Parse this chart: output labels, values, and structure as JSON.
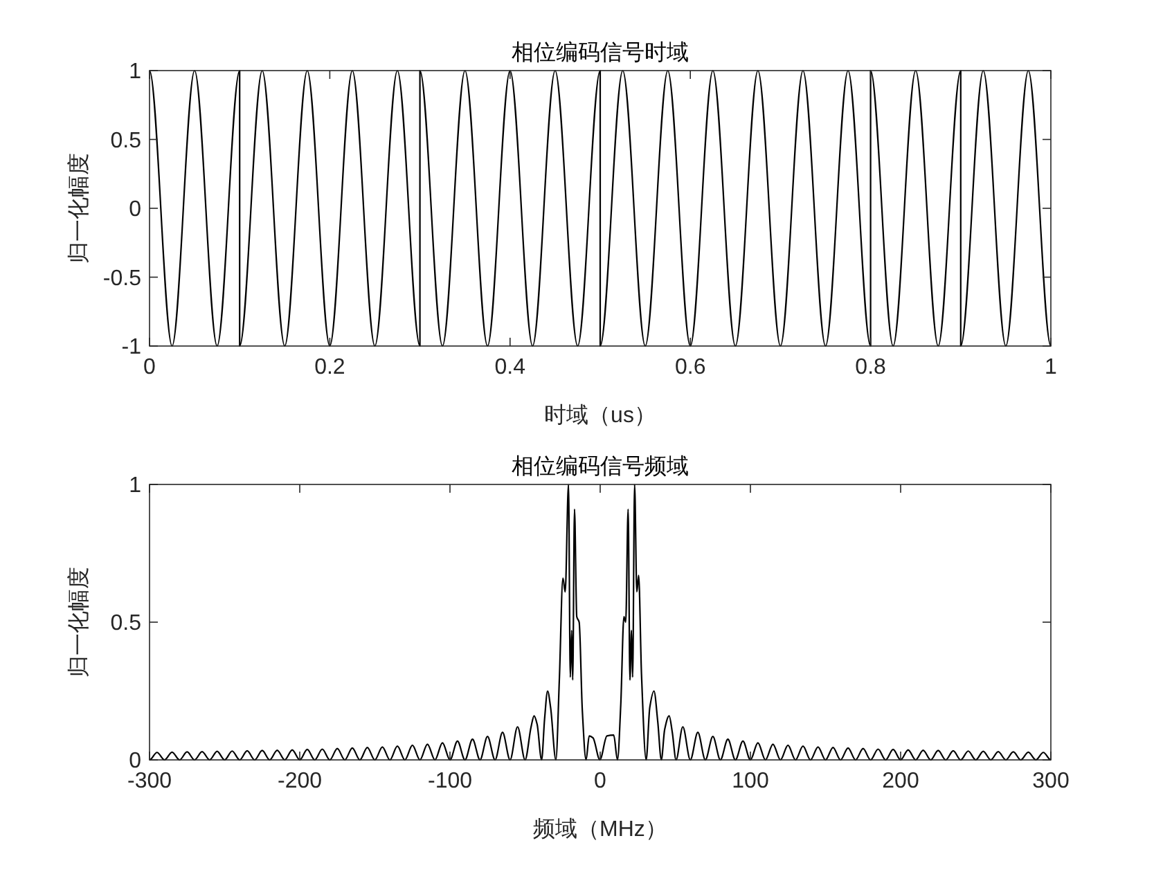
{
  "chart_data": [
    {
      "type": "line",
      "title": "相位编码信号时域",
      "xlabel": "时域（us）",
      "ylabel": "归一化幅度",
      "xlim": [
        0,
        1
      ],
      "ylim": [
        -1,
        1
      ],
      "xticks": [
        0,
        0.2,
        0.4,
        0.6,
        0.8,
        1
      ],
      "yticks": [
        -1,
        -0.5,
        0,
        0.5,
        1
      ],
      "series": [
        {
          "color": "#000000",
          "x": [
            0,
            0.025,
            0.05,
            0.075,
            0.1,
            0.1,
            0.125,
            0.15,
            0.175,
            0.2,
            0.225,
            0.25,
            0.275,
            0.3,
            0.3,
            0.325,
            0.35,
            0.375,
            0.4,
            0.425,
            0.45,
            0.475,
            0.5,
            0.5,
            0.525,
            0.55,
            0.575,
            0.6,
            0.625,
            0.65,
            0.675,
            0.7,
            0.725,
            0.75,
            0.775,
            0.8,
            0.8,
            0.825,
            0.85,
            0.875,
            0.9,
            0.9,
            0.925,
            0.95,
            0.975,
            1
          ],
          "values": [
            1,
            -1,
            1,
            -1,
            1,
            -1,
            1,
            -1,
            1,
            -1,
            1,
            -1,
            1,
            -1,
            1,
            -1,
            1,
            -1,
            1,
            -1,
            1,
            -1,
            1,
            -1,
            1,
            -1,
            1,
            -1,
            1,
            -1,
            1,
            -1,
            1,
            -1,
            1,
            -1,
            1,
            -1,
            1,
            -1,
            1,
            -1,
            1,
            -1,
            1,
            -1
          ]
        }
      ]
    },
    {
      "type": "line",
      "title": "相位编码信号频域",
      "xlabel": "频域（MHz）",
      "ylabel": "归一化幅度",
      "xlim": [
        -300,
        300
      ],
      "ylim": [
        0,
        1
      ],
      "xticks": [
        -300,
        -200,
        -100,
        0,
        100,
        200,
        300
      ],
      "yticks": [
        0,
        0.5,
        1
      ],
      "series": [
        {
          "color": "#000000",
          "x": [
            -300,
            -295,
            -290,
            -285,
            -280,
            -275,
            -270,
            -265,
            -260,
            -255,
            -250,
            -245,
            -240,
            -235,
            -230,
            -225,
            -220,
            -215,
            -210,
            -205,
            -200,
            -195,
            -190,
            -185,
            -180,
            -175,
            -170,
            -165,
            -160,
            -155,
            -150,
            -145,
            -140,
            -135,
            -130,
            -125,
            -120,
            -115,
            -110,
            -105,
            -100,
            -95,
            -90,
            -85,
            -80,
            -75,
            -70,
            -65,
            -60,
            -55,
            -50,
            -46,
            -44,
            -42,
            -39,
            -37,
            -35,
            -33,
            -29.5,
            -27.2,
            -24.8,
            -23.3,
            -21.1,
            -19.9,
            -19,
            -18.3,
            -17.1,
            -15.6,
            -14,
            -11.9,
            -9.4,
            -7.3,
            -4.8,
            -0.2,
            4.5,
            9,
            11.5,
            13.7,
            15.8,
            17,
            18.6,
            19.8,
            20.8,
            21.6,
            22.9,
            24.4,
            25.6,
            27.5,
            30.6,
            33,
            35.8,
            38.3,
            40.7,
            42.9,
            45.9,
            48,
            50.5,
            55,
            60,
            65,
            70,
            75,
            80,
            85,
            90,
            95,
            100,
            105,
            110,
            115,
            120,
            125,
            130,
            135,
            140,
            145,
            150,
            155,
            160,
            165,
            170,
            175,
            180,
            185,
            190,
            195,
            200,
            205,
            210,
            215,
            220,
            225,
            230,
            235,
            240,
            245,
            250,
            255,
            260,
            265,
            270,
            275,
            280,
            285,
            290,
            295,
            300
          ],
          "values": [
            0,
            0.027,
            0,
            0.028,
            0,
            0.029,
            0,
            0.03,
            0,
            0.031,
            0,
            0.032,
            0,
            0.033,
            0,
            0.034,
            0,
            0.035,
            0,
            0.036,
            0,
            0.038,
            0,
            0.039,
            0,
            0.041,
            0,
            0.043,
            0,
            0.045,
            0,
            0.047,
            0,
            0.05,
            0,
            0.053,
            0,
            0.057,
            0,
            0.062,
            0,
            0.068,
            0,
            0.075,
            0,
            0.085,
            0,
            0.1,
            0,
            0.12,
            0,
            0.12,
            0.16,
            0.13,
            0,
            0.15,
            0.25,
            0.19,
            0,
            0.29,
            0.66,
            0.61,
            1,
            0.3,
            0.47,
            0.29,
            0.91,
            0.52,
            0.5,
            0.18,
            0,
            0.087,
            0.08,
            0,
            0.087,
            0.09,
            0,
            0.2,
            0.52,
            0.5,
            0.91,
            0.29,
            0.47,
            0.3,
            1,
            0.61,
            0.67,
            0.31,
            0,
            0.19,
            0.25,
            0.14,
            0,
            0.11,
            0.16,
            0.1,
            0,
            0.12,
            0,
            0.1,
            0,
            0.085,
            0,
            0.075,
            0,
            0.068,
            0,
            0.062,
            0,
            0.057,
            0,
            0.053,
            0,
            0.05,
            0,
            0.047,
            0,
            0.045,
            0,
            0.043,
            0,
            0.041,
            0,
            0.039,
            0,
            0.038,
            0,
            0.036,
            0,
            0.035,
            0,
            0.034,
            0,
            0.033,
            0,
            0.032,
            0,
            0.031,
            0,
            0.03,
            0,
            0.029,
            0,
            0.028,
            0,
            0.027,
            0
          ]
        }
      ]
    }
  ]
}
